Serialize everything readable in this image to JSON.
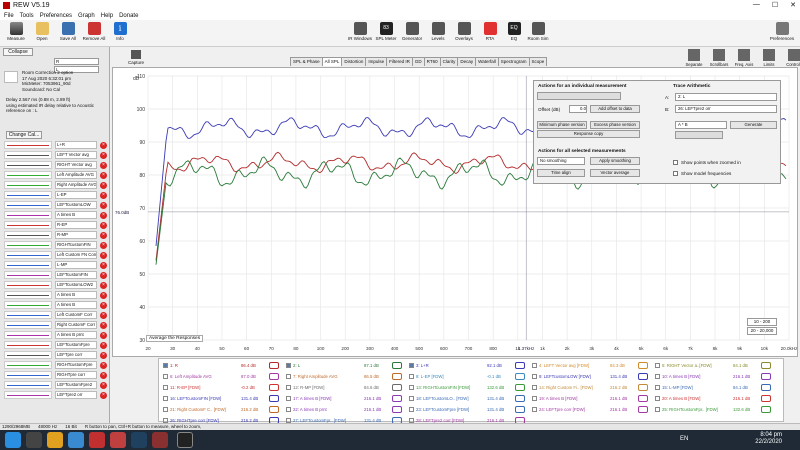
{
  "window": {
    "title": "REW V5.19",
    "controls": [
      "—",
      "☐",
      "✕"
    ]
  },
  "menu": [
    "File",
    "Tools",
    "Preferences",
    "Graph",
    "Help",
    "Donate"
  ],
  "toolbar_left": [
    {
      "label": "Measure",
      "icon": "microphone-icon"
    },
    {
      "label": "Open",
      "icon": "folder-icon"
    },
    {
      "label": "Save All",
      "icon": "save-icon"
    },
    {
      "label": "Remove All",
      "icon": "remove-icon"
    },
    {
      "label": "Info",
      "icon": "info-icon",
      "glyph": "i"
    }
  ],
  "toolbar_center": [
    {
      "label": "IR Windows",
      "icon": "ir-windows-icon"
    },
    {
      "label": "SPL Meter",
      "icon": "spl-meter-icon",
      "glyph": "83"
    },
    {
      "label": "Generator",
      "icon": "generator-icon"
    },
    {
      "label": "Levels",
      "icon": "levels-icon"
    },
    {
      "label": "Overlays",
      "icon": "overlays-icon"
    },
    {
      "label": "RTA",
      "icon": "rta-icon"
    },
    {
      "label": "EQ",
      "icon": "eq-icon",
      "glyph": "EQ"
    },
    {
      "label": "Room Sim",
      "icon": "room-sim-icon"
    }
  ],
  "toolbar_right": {
    "label": "Preferences",
    "icon": "gear-icon"
  },
  "sidebar": {
    "collapse": "Collapse",
    "change_cal": "Change Cal...",
    "name_line1": "R",
    "name_line2": "L",
    "notes": "Room Correction 2 option\n17 Aug 2020 6:32:01 pm\nMicMeter: 7053961_90d\nSoundcard: No Cal",
    "delay": "Delay 2.567 ms (0.88 m, 2.89 ft)\nusing estimated IR delay relative to Acoustic\nreference on : L",
    "items": [
      {
        "name": "L+R",
        "color": "#c33"
      },
      {
        "name": "LEFT Vector avg",
        "color": "#555"
      },
      {
        "name": "RIGHT Vector avg",
        "color": "#555"
      },
      {
        "name": "Left Amplitude AVG",
        "color": "#3a3"
      },
      {
        "name": "Right Amplitude AVG",
        "color": "#3a3"
      },
      {
        "name": "L-EP",
        "color": "#36c"
      },
      {
        "name": "LEFTcustomLOW",
        "color": "#36c"
      },
      {
        "name": "A times B",
        "color": "#a3a"
      },
      {
        "name": "R-EP",
        "color": "#c33"
      },
      {
        "name": "R-MP",
        "color": "#555"
      },
      {
        "name": "RIGHTcustomFIN",
        "color": "#3a3"
      },
      {
        "name": "Left Custom FN Corr",
        "color": "#36c"
      },
      {
        "name": "L-MP",
        "color": "#36c"
      },
      {
        "name": "LEFTcustomFIN",
        "color": "#a3a"
      },
      {
        "name": "LEFTcustomLOW2",
        "color": "#c33"
      },
      {
        "name": "A times B",
        "color": "#555"
      },
      {
        "name": "A times B",
        "color": "#3a3"
      },
      {
        "name": "Left CustomF Corr",
        "color": "#36c"
      },
      {
        "name": "Right CustomF Corr",
        "color": "#36c"
      },
      {
        "name": "A times B prnt",
        "color": "#a3a"
      },
      {
        "name": "LEFTcustomFpre",
        "color": "#c33"
      },
      {
        "name": "LEFTpre corr",
        "color": "#555"
      },
      {
        "name": "RIGHTcustomFpre",
        "color": "#3a3"
      },
      {
        "name": "RIGHTpre corr",
        "color": "#36c"
      },
      {
        "name": "LEFTcustomFpre2",
        "color": "#36c"
      },
      {
        "name": "LEFTpre2 orr",
        "color": "#a3a"
      }
    ]
  },
  "capture_label": "Capture",
  "tabs": [
    "SPL & Phase",
    "All SPL",
    "Distortion",
    "Impulse",
    "Filtered IR",
    "GD",
    "RT60",
    "Clarity",
    "Decay",
    "Waterfall",
    "Spectrogram",
    "Scope"
  ],
  "active_tab": "All SPL",
  "right_tools": [
    {
      "label": "Separate",
      "icon": "separate-icon"
    },
    {
      "label": "Scrollbars",
      "icon": "scrollbars-icon"
    },
    {
      "label": "Freq. Axis",
      "icon": "freq-axis-icon"
    },
    {
      "label": "Limits",
      "icon": "limits-icon"
    },
    {
      "label": "Controls",
      "icon": "controls-icon"
    }
  ],
  "graph": {
    "y_unit": "dB",
    "y_ticks": [
      "110",
      "100",
      "90",
      "80",
      "70",
      "60",
      "50",
      "40",
      "30"
    ],
    "x_ticks": [
      "20",
      "30",
      "40",
      "50",
      "60",
      "70",
      "80",
      "100",
      "200",
      "300",
      "400",
      "500",
      "600",
      "700",
      "800",
      "1k",
      "1k",
      "2k",
      "3k",
      "4k",
      "5k",
      "6k",
      "7k",
      "8k",
      "9k",
      "10k",
      "20.0kHz"
    ],
    "marker_y": "76.0dB",
    "marker_x": "1.37kHz",
    "avg_label": "Average the Responses",
    "range_buttons": [
      "10 - 200",
      "20 - 20,000"
    ],
    "series": [
      {
        "name": "Blue",
        "color": "#3a3ab5"
      },
      {
        "name": "Red",
        "color": "#b22a2a"
      },
      {
        "name": "Green",
        "color": "#2a7a3a"
      }
    ]
  },
  "panel": {
    "title_individual": "Actions for an individual measurement",
    "offset_label": "Offset (dB)",
    "offset_value": "0.0",
    "add_offset": "Add offset to data",
    "min_phase": "Minimum phase version",
    "excess_phase": "Excess phase version",
    "response_copy": "Response copy",
    "title_selected": "Actions for all selected measurements",
    "smoothing_value": "No smoothing",
    "apply_smoothing": "Apply smoothing",
    "time_align": "Time align",
    "vector_average": "Vector average",
    "title_arith": "Trace Arithmetic",
    "a_label": "A:",
    "a_value": "2: L",
    "b_label": "B:",
    "b_value": "26: LEFTpre2 orr",
    "op_value": "A * B",
    "generate": "Generate",
    "show_zoomed": "Show points when zoomed in",
    "show_model": "Show model frequencies"
  },
  "legend": [
    {
      "id": "1: R",
      "value": "86.4 dB",
      "color": "#b22a2a",
      "checked": true
    },
    {
      "id": "2: L",
      "value": "87.1 dB",
      "color": "#2a7a3a",
      "checked": true
    },
    {
      "id": "3: L+R",
      "value": "92.1 dB",
      "color": "#3a3ab5",
      "checked": true
    },
    {
      "id": "4: LEFT Vector avg [FDW]",
      "value": "84.3 dB",
      "color": "#d08a2a",
      "checked": false
    },
    {
      "id": "5: RIGHT Vector a..[FDW]",
      "value": "84.1 dB",
      "color": "#8a8a2a",
      "checked": false
    },
    {
      "id": "6: Left Amplitude AVG",
      "value": "87.0 dB",
      "color": "#a33aa3",
      "checked": false
    },
    {
      "id": "7: Right Amplitude AVG",
      "value": "86.5 dB",
      "color": "#c06a2a",
      "checked": false
    },
    {
      "id": "8: L-EP [FDW]",
      "value": "-0.1 dB",
      "color": "#3a8ac0",
      "checked": false
    },
    {
      "id": "9: LEFTcustomLOW [FDW]",
      "value": "131.4 dB",
      "color": "#3a3ab5",
      "checked": false
    },
    {
      "id": "10: A times B [FDW]",
      "value": "216.1 dB",
      "color": "#8a3ab5",
      "checked": false
    },
    {
      "id": "11: R-EP [FDW]",
      "value": "-0.2 dB",
      "color": "#c33",
      "checked": false
    },
    {
      "id": "12: R-MP [FDW]",
      "value": "84.6 dB",
      "color": "#6a6a6a",
      "checked": false
    },
    {
      "id": "13: RIGHTcustomFIN [FDW]",
      "value": "132.6 dB",
      "color": "#3a9a3a",
      "checked": false
    },
    {
      "id": "14: Right Custom Fi.. [FDW]",
      "value": "216.2 dB",
      "color": "#c08a3a",
      "checked": false
    },
    {
      "id": "15: L-MP [FDW]",
      "value": "84.1 dB",
      "color": "#3a6ab5",
      "checked": false
    },
    {
      "id": "16: LEFTcustomFIN [FDW]",
      "value": "131.4 dB",
      "color": "#3a3ab5",
      "checked": false
    },
    {
      "id": "17: A times B [FDW]",
      "value": "216.1 dB",
      "color": "#8a3ab5",
      "checked": false
    },
    {
      "id": "18: LEFTcustomLO.. [FDW]",
      "value": "131.4 dB",
      "color": "#3a6ab5",
      "checked": false
    },
    {
      "id": "19: A times B [FDW]",
      "value": "216.1 dB",
      "color": "#a33aa3",
      "checked": false
    },
    {
      "id": "20: A times B [FDW]",
      "value": "216.1 dB",
      "color": "#c33",
      "checked": false
    },
    {
      "id": "21: Right CustomF C.. [FDW]",
      "value": "216.2 dB",
      "color": "#c06a2a",
      "checked": false
    },
    {
      "id": "22: A times B prnt",
      "value": "216.1 dB",
      "color": "#8a3ab5",
      "checked": false
    },
    {
      "id": "23: LEFTcustomFpre [FDW]",
      "value": "131.4 dB",
      "color": "#3a6ab5",
      "checked": false
    },
    {
      "id": "24: LEFTpre corr [FDW]",
      "value": "216.1 dB",
      "color": "#a33aa3",
      "checked": false
    },
    {
      "id": "25: RIGHTcustomFpr.. [FDW]",
      "value": "132.6 dB",
      "color": "#3a9a3a",
      "checked": false
    },
    {
      "id": "26: RIGHTpre corr [FDW]",
      "value": "216.2 dB",
      "color": "#3a3ab5",
      "checked": false
    },
    {
      "id": "27: LEFTcustomFpr.. [FDW]",
      "value": "131.4 dB",
      "color": "#3a6ab5",
      "checked": false
    },
    {
      "id": "28: LEFTpre2 corr [FDW]",
      "value": "216.1 dB",
      "color": "#a33aa3",
      "checked": false
    }
  ],
  "statusbar": [
    "1290/2968MB",
    "48000 Hz",
    "16 Bit",
    "R button to pan, Ctrl+R button to measure, wheel to zoom,"
  ],
  "taskbar": {
    "lang": "EN",
    "time": "8:04 pm",
    "date": "22/2/2020"
  }
}
